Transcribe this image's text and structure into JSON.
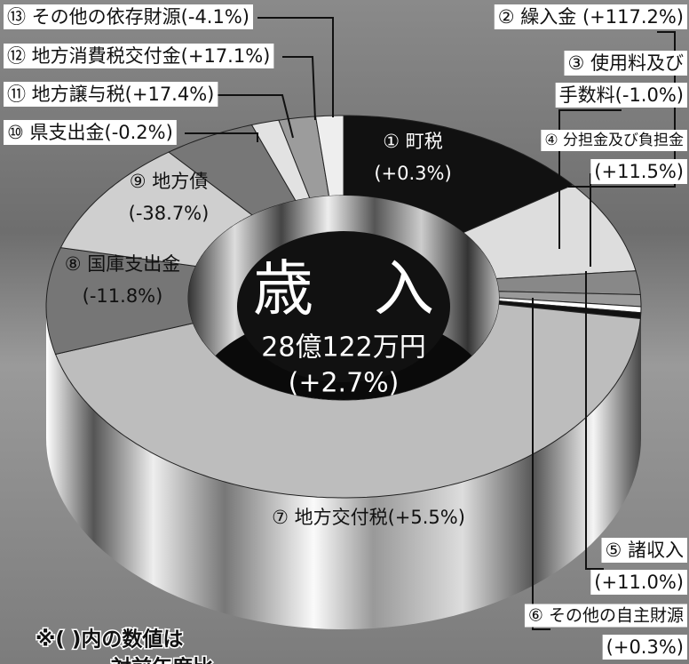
{
  "chart_data": {
    "type": "pie",
    "center_title": "歳　入",
    "center_total": "28億122万円",
    "center_change": "(+2.7%)",
    "values": [
      14,
      8,
      2,
      1,
      0.5,
      0.5,
      45,
      9,
      10,
      5,
      1.5,
      2,
      1.5
    ],
    "colors": [
      "#111111",
      "#dddddd",
      "#888888",
      "#9a9a9a",
      "#ffffff",
      "#111111",
      "#bdbdbd",
      "#767676",
      "#cfcfcf",
      "#777777",
      "#e2e2e2",
      "#9c9c9c",
      "#eeeeee"
    ],
    "labels": [
      [
        "① 町税",
        "(+0.3%)"
      ],
      [
        "② 繰入金 (+117.2%)"
      ],
      [
        "③ 使用料及び",
        "手数料(-1.0%)"
      ],
      [
        "④ 分担金及び負担金",
        "(+11.5%)"
      ],
      [
        "⑤ 諸収入",
        "(+11.0%)"
      ],
      [
        "⑥ その他の自主財源",
        "(+0.3%)"
      ],
      [
        "⑦ 地方交付税(+5.5%)"
      ],
      [
        "⑧ 国庫支出金",
        "(-11.8%)"
      ],
      [
        "⑨ 地方債",
        "(-38.7%)"
      ],
      [
        "⑩ 県支出金(-0.2%)"
      ],
      [
        "⑪ 地方譲与税(+17.4%)"
      ],
      [
        "⑫ 地方消費税交付金(+17.1%)"
      ],
      [
        "⑬ その他の依存財源(-4.1%)"
      ]
    ],
    "note": [
      "※( )内の数値は",
      "対前年度比"
    ]
  }
}
